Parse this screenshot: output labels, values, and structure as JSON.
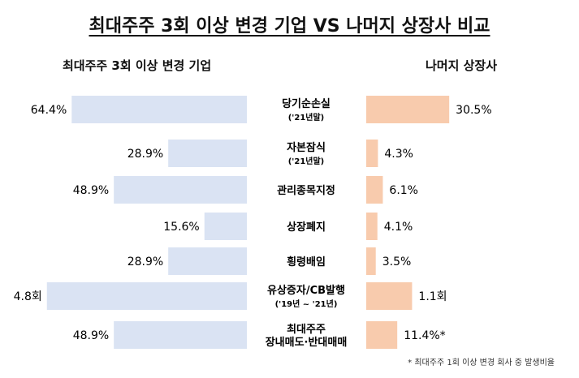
{
  "chart_data": {
    "type": "bar",
    "title": "최대주주 3회 이상 변경 기업 VS 나머지 상장사 비교",
    "left_series": "최대주주 3회 이상 변경 기업",
    "right_series": "나머지 상장사",
    "categories": [
      [
        "당기순손실",
        "('21년말)"
      ],
      [
        "자본잠식",
        "('21년말)"
      ],
      [
        "관리종목지정"
      ],
      [
        "상장폐지"
      ],
      [
        "횡령배임"
      ],
      [
        "유상증자/CB발행",
        "('19년 ~ '21년)"
      ],
      [
        "최대주주",
        "장내매도·반대매매"
      ]
    ],
    "left_values": [
      64.4,
      28.9,
      48.9,
      15.6,
      28.9,
      4.8,
      48.9
    ],
    "right_values": [
      30.5,
      4.3,
      6.1,
      4.1,
      3.5,
      1.1,
      11.4
    ],
    "units": [
      "%",
      "%",
      "%",
      "%",
      "%",
      "회",
      "%"
    ],
    "left_labels": [
      "64.4%",
      "28.9%",
      "48.9%",
      "15.6%",
      "28.9%",
      "4.8회",
      "48.9%"
    ],
    "right_labels": [
      "30.5%",
      "4.3%",
      "6.1%",
      "4.1%",
      "3.5%",
      "1.1회",
      "11.4%*"
    ],
    "colors": {
      "left": "#dae3f3",
      "right": "#f8cbad"
    },
    "footnote": "* 최대주주 1회 이상 변경 회사 중 발생비율"
  }
}
